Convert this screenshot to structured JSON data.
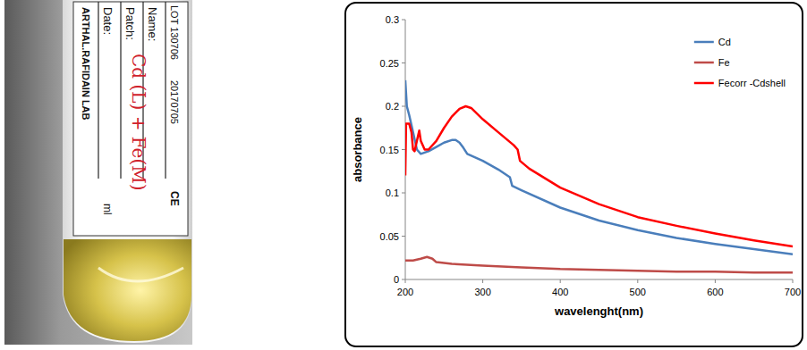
{
  "chart_data": {
    "type": "line",
    "x_label": "wavelenght(nm)",
    "y_label": "absorbance",
    "xlim": [
      200,
      700
    ],
    "xticks": [
      200,
      300,
      400,
      500,
      600,
      700
    ],
    "ylim": [
      0,
      0.3
    ],
    "yticks": [
      0,
      0.05,
      0.1,
      0.15,
      0.2,
      0.25,
      0.3
    ],
    "grid": false,
    "legend": "top-right",
    "series": [
      {
        "name": "Cd",
        "color": "#4a7ebb",
        "x": [
          200,
          202,
          205,
          210,
          215,
          220,
          230,
          240,
          250,
          260,
          265,
          270,
          275,
          280,
          300,
          320,
          335,
          338,
          350,
          400,
          450,
          500,
          550,
          600,
          650,
          700
        ],
        "values": [
          0.23,
          0.2,
          0.19,
          0.17,
          0.15,
          0.145,
          0.148,
          0.153,
          0.158,
          0.161,
          0.161,
          0.158,
          0.152,
          0.145,
          0.137,
          0.127,
          0.118,
          0.108,
          0.103,
          0.083,
          0.068,
          0.057,
          0.048,
          0.041,
          0.035,
          0.029
        ]
      },
      {
        "name": "Fe",
        "color": "#be4b48",
        "x": [
          200,
          210,
          220,
          228,
          235,
          240,
          260,
          300,
          350,
          400,
          450,
          500,
          550,
          600,
          650,
          700
        ],
        "values": [
          0.022,
          0.022,
          0.024,
          0.026,
          0.024,
          0.02,
          0.018,
          0.016,
          0.014,
          0.012,
          0.011,
          0.01,
          0.009,
          0.009,
          0.008,
          0.008
        ]
      },
      {
        "name": "Fecorr -Cdshell",
        "color": "#ff0000",
        "x": [
          200,
          201,
          205,
          208,
          210,
          212,
          215,
          218,
          220,
          225,
          230,
          240,
          250,
          260,
          270,
          278,
          285,
          300,
          320,
          340,
          345,
          348,
          360,
          400,
          450,
          500,
          550,
          600,
          650,
          700
        ],
        "values": [
          0.12,
          0.18,
          0.18,
          0.17,
          0.15,
          0.148,
          0.16,
          0.172,
          0.16,
          0.15,
          0.15,
          0.16,
          0.175,
          0.188,
          0.197,
          0.2,
          0.198,
          0.185,
          0.17,
          0.155,
          0.15,
          0.137,
          0.128,
          0.106,
          0.087,
          0.072,
          0.062,
          0.053,
          0.045,
          0.038
        ]
      }
    ]
  },
  "photo": {
    "label": {
      "lot": "LOT 130706",
      "date_code": "20170705",
      "fields": [
        "Name:",
        "Patch:",
        "Date:"
      ],
      "maker": "ARTHAL.RAFIDAIN LAB",
      "marks": [
        "CE",
        "ml"
      ],
      "handwriting": "Cd (L) + Fe(M)"
    }
  }
}
